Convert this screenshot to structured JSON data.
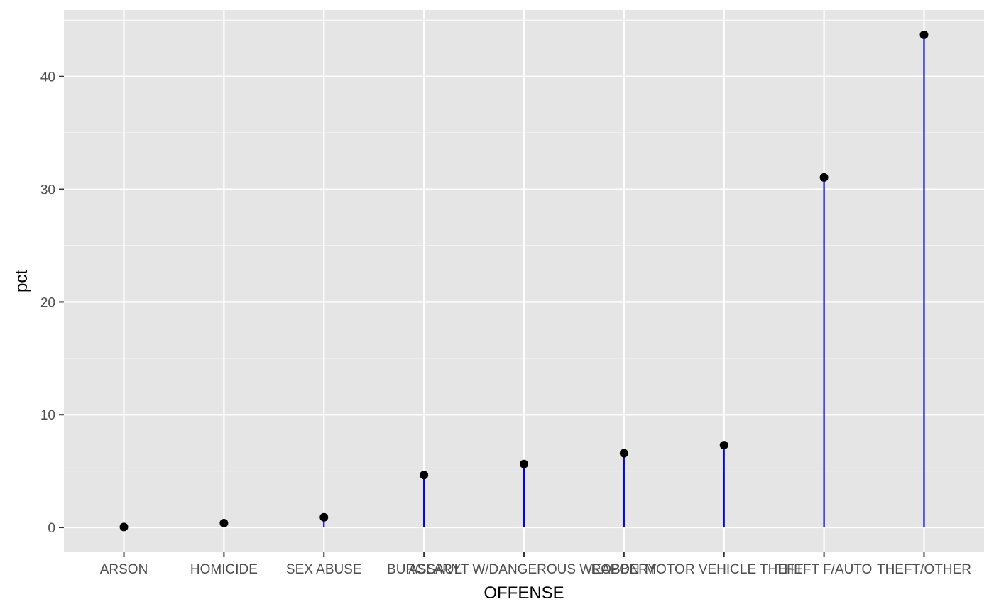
{
  "chart_data": {
    "type": "lollipop",
    "title": "",
    "xlabel": "OFFENSE",
    "ylabel": "pct",
    "categories": [
      "ARSON",
      "HOMICIDE",
      "SEX ABUSE",
      "BURGLARY",
      "ASSAULT W/DANGEROUS WEAPON",
      "ROBBERY",
      "MOTOR VEHICLE THEFT",
      "THEFT F/AUTO",
      "THEFT/OTHER"
    ],
    "values": [
      0.04,
      0.38,
      0.9,
      4.65,
      5.62,
      6.58,
      7.3,
      31.05,
      43.7
    ],
    "ylim": [
      -2.2,
      45.9
    ],
    "yticks": [
      0,
      10,
      20,
      30,
      40
    ],
    "ytick_labels": [
      "0",
      "10",
      "20",
      "30",
      "40"
    ],
    "grid": true,
    "colors": {
      "panel": "#e5e5e5",
      "grid": "#ffffff",
      "stem": "#0000ff",
      "point": "#000000"
    }
  }
}
